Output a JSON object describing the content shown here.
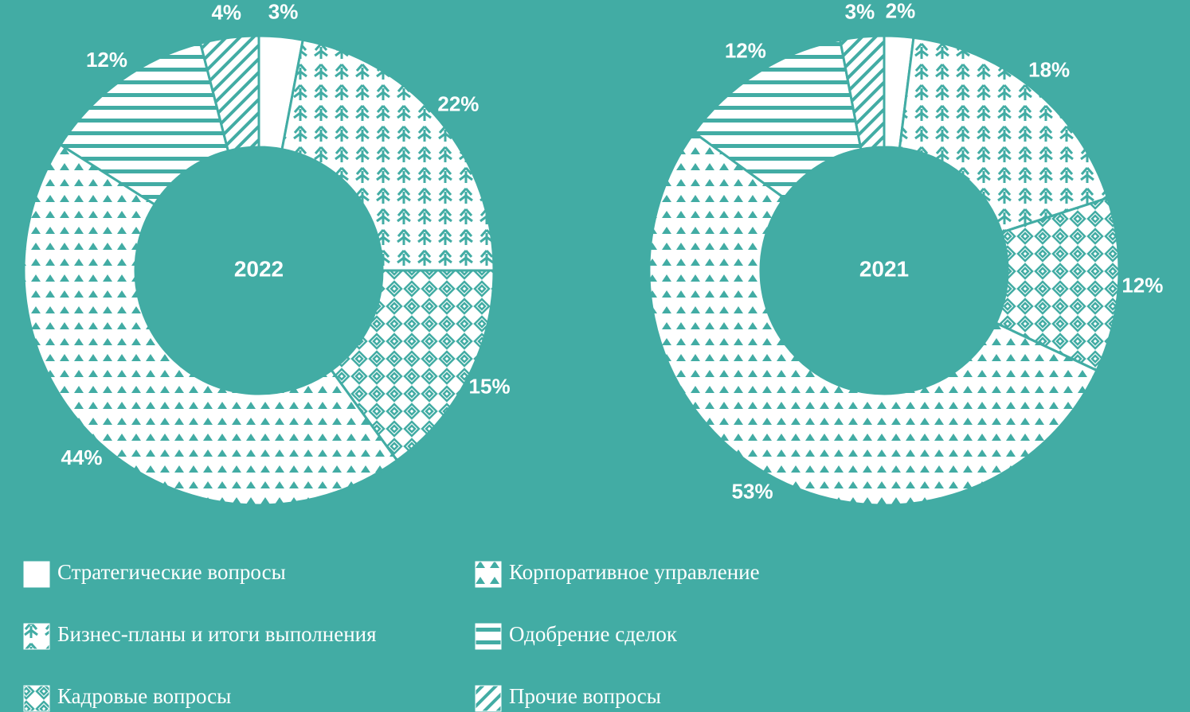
{
  "chart_data": [
    {
      "type": "pie",
      "title": "2022",
      "categories": [
        "Стратегические вопросы",
        "Бизнес-планы и итоги выполнения",
        "Кадровые вопросы",
        "Корпоративное управление",
        "Одобрение сделок",
        "Прочие вопросы"
      ],
      "values": [
        3,
        22,
        15,
        44,
        12,
        4
      ],
      "value_labels": [
        "3%",
        "22%",
        "15%",
        "44%",
        "12%",
        "4%"
      ]
    },
    {
      "type": "pie",
      "title": "2021",
      "categories": [
        "Стратегические вопросы",
        "Бизнес-планы и итоги выполнения",
        "Кадровые вопросы",
        "Корпоративное управление",
        "Одобрение сделок",
        "Прочие вопросы"
      ],
      "values": [
        2,
        18,
        12,
        53,
        12,
        3
      ],
      "value_labels": [
        "2%",
        "18%",
        "12%",
        "53%",
        "12%",
        "3%"
      ]
    }
  ]
}
